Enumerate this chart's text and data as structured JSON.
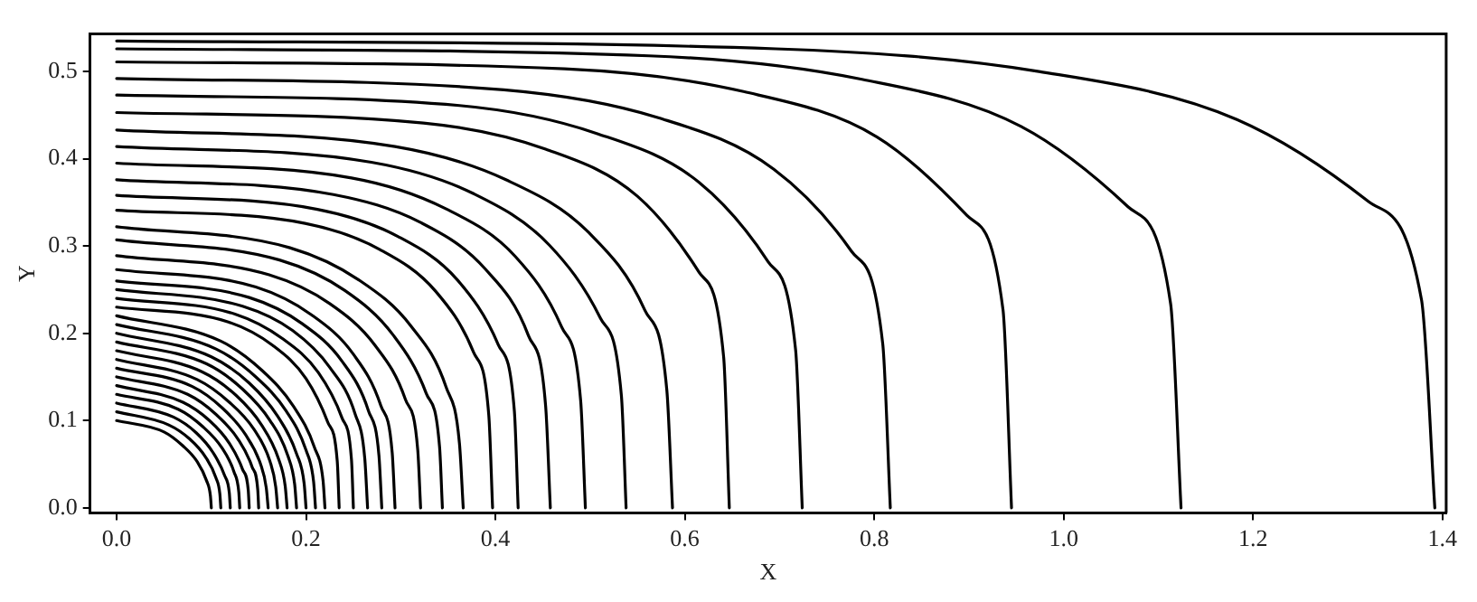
{
  "chart_data": {
    "type": "line",
    "xlabel": "X",
    "ylabel": "Y",
    "xlim": [
      -0.028,
      1.404
    ],
    "ylim": [
      -0.006,
      0.543
    ],
    "xticks": [
      {
        "value": 0,
        "label": "0.0"
      },
      {
        "value": 0.2,
        "label": "0.2"
      },
      {
        "value": 0.4,
        "label": "0.4"
      },
      {
        "value": 0.6,
        "label": "0.6"
      },
      {
        "value": 0.8,
        "label": "0.8"
      },
      {
        "value": 1,
        "label": "1.0"
      },
      {
        "value": 1.2,
        "label": "1.2"
      },
      {
        "value": 1.4,
        "label": "1.4"
      }
    ],
    "yticks": [
      {
        "value": 0,
        "label": "0.0"
      },
      {
        "value": 0.1,
        "label": "0.1"
      },
      {
        "value": 0.2,
        "label": "0.2"
      },
      {
        "value": 0.3,
        "label": "0.3"
      },
      {
        "value": 0.4,
        "label": "0.4"
      },
      {
        "value": 0.5,
        "label": "0.5"
      }
    ],
    "grid": false,
    "legend": false,
    "marker": "none",
    "line_style": "solid",
    "series": [
      {
        "color": "#000000",
        "x": [
          0,
          0.05,
          0.07,
          0.085,
          0.095,
          0.099,
          0.1
        ],
        "values": [
          0.1,
          0.087,
          0.071,
          0.053,
          0.031,
          0.014,
          0
        ]
      },
      {
        "color": "#000000",
        "x": [
          0,
          0.055,
          0.077,
          0.094,
          0.105,
          0.109,
          0.11
        ],
        "values": [
          0.11,
          0.095,
          0.079,
          0.058,
          0.034,
          0.016,
          0
        ]
      },
      {
        "color": "#000000",
        "x": [
          0,
          0.06,
          0.084,
          0.102,
          0.114,
          0.119,
          0.12
        ],
        "values": [
          0.12,
          0.104,
          0.086,
          0.063,
          0.037,
          0.017,
          0
        ]
      },
      {
        "color": "#000000",
        "x": [
          0,
          0.065,
          0.091,
          0.111,
          0.124,
          0.129,
          0.13
        ],
        "values": [
          0.13,
          0.113,
          0.093,
          0.069,
          0.041,
          0.018,
          0
        ]
      },
      {
        "color": "#000000",
        "x": [
          0,
          0.07,
          0.098,
          0.119,
          0.133,
          0.139,
          0.14
        ],
        "values": [
          0.14,
          0.121,
          0.1,
          0.074,
          0.044,
          0.02,
          0
        ]
      },
      {
        "color": "#000000",
        "x": [
          0,
          0.075,
          0.105,
          0.128,
          0.143,
          0.149,
          0.15
        ],
        "values": [
          0.15,
          0.13,
          0.107,
          0.079,
          0.047,
          0.021,
          0
        ]
      },
      {
        "color": "#000000",
        "x": [
          0,
          0.08,
          0.112,
          0.136,
          0.152,
          0.158,
          0.16
        ],
        "values": [
          0.16,
          0.139,
          0.114,
          0.084,
          0.05,
          0.023,
          0
        ]
      },
      {
        "color": "#000000",
        "x": [
          0,
          0.085,
          0.119,
          0.145,
          0.162,
          0.168,
          0.17
        ],
        "values": [
          0.17,
          0.147,
          0.121,
          0.09,
          0.053,
          0.024,
          0
        ]
      },
      {
        "color": "#000000",
        "x": [
          0,
          0.09,
          0.126,
          0.153,
          0.171,
          0.178,
          0.18
        ],
        "values": [
          0.18,
          0.156,
          0.129,
          0.095,
          0.056,
          0.025,
          0
        ]
      },
      {
        "color": "#000000",
        "x": [
          0,
          0.095,
          0.133,
          0.162,
          0.181,
          0.188,
          0.19
        ],
        "values": [
          0.19,
          0.165,
          0.136,
          0.1,
          0.059,
          0.027,
          0
        ]
      },
      {
        "color": "#000000",
        "x": [
          0,
          0.1,
          0.14,
          0.17,
          0.19,
          0.198,
          0.2
        ],
        "values": [
          0.2,
          0.173,
          0.143,
          0.105,
          0.062,
          0.028,
          0
        ]
      },
      {
        "color": "#000000",
        "x": [
          0,
          0.105,
          0.147,
          0.179,
          0.2,
          0.208,
          0.21
        ],
        "values": [
          0.21,
          0.182,
          0.15,
          0.111,
          0.066,
          0.03,
          0
        ]
      },
      {
        "color": "#000000",
        "x": [
          0,
          0.11,
          0.154,
          0.187,
          0.209,
          0.218,
          0.22
        ],
        "values": [
          0.22,
          0.191,
          0.157,
          0.116,
          0.069,
          0.031,
          0
        ]
      },
      {
        "color": "#000000",
        "x": [
          0,
          0.118,
          0.165,
          0.2,
          0.223,
          0.233,
          0.235
        ],
        "values": [
          0.23,
          0.213,
          0.186,
          0.148,
          0.098,
          0.053,
          0
        ]
      },
      {
        "color": "#000000",
        "x": [
          0,
          0.125,
          0.175,
          0.213,
          0.238,
          0.248,
          0.25
        ],
        "values": [
          0.24,
          0.222,
          0.194,
          0.155,
          0.103,
          0.055,
          0
        ]
      },
      {
        "color": "#000000",
        "x": [
          0,
          0.133,
          0.186,
          0.225,
          0.252,
          0.262,
          0.265
        ],
        "values": [
          0.25,
          0.231,
          0.203,
          0.161,
          0.107,
          0.057,
          0
        ]
      },
      {
        "color": "#000000",
        "x": [
          0,
          0.14,
          0.196,
          0.238,
          0.266,
          0.277,
          0.28
        ],
        "values": [
          0.26,
          0.241,
          0.211,
          0.168,
          0.111,
          0.06,
          0
        ]
      },
      {
        "color": "#000000",
        "x": [
          0,
          0.147,
          0.206,
          0.25,
          0.279,
          0.291,
          0.294
        ],
        "values": [
          0.273,
          0.253,
          0.221,
          0.176,
          0.117,
          0.063,
          0
        ]
      },
      {
        "color": "#000000",
        "x": [
          0,
          0.161,
          0.225,
          0.273,
          0.305,
          0.318,
          0.321
        ],
        "values": [
          0.289,
          0.267,
          0.234,
          0.186,
          0.124,
          0.066,
          0
        ]
      },
      {
        "color": "#000000",
        "x": [
          0,
          0.172,
          0.241,
          0.292,
          0.327,
          0.341,
          0.344
        ],
        "values": [
          0.307,
          0.284,
          0.249,
          0.198,
          0.131,
          0.07,
          0
        ]
      },
      {
        "color": "#000000",
        "x": [
          0,
          0.183,
          0.256,
          0.311,
          0.348,
          0.362,
          0.366
        ],
        "values": [
          0.322,
          0.298,
          0.261,
          0.208,
          0.138,
          0.074,
          0
        ]
      },
      {
        "color": "#000000",
        "x": [
          0,
          0.199,
          0.278,
          0.337,
          0.377,
          0.393,
          0.397
        ],
        "values": [
          0.341,
          0.326,
          0.296,
          0.248,
          0.178,
          0.106,
          0
        ]
      },
      {
        "color": "#000000",
        "x": [
          0,
          0.212,
          0.297,
          0.36,
          0.403,
          0.42,
          0.424
        ],
        "values": [
          0.358,
          0.342,
          0.311,
          0.261,
          0.187,
          0.111,
          0
        ]
      },
      {
        "color": "#000000",
        "x": [
          0,
          0.229,
          0.321,
          0.389,
          0.435,
          0.453,
          0.458
        ],
        "values": [
          0.376,
          0.359,
          0.327,
          0.274,
          0.197,
          0.117,
          0
        ]
      },
      {
        "color": "#000000",
        "x": [
          0,
          0.248,
          0.347,
          0.421,
          0.47,
          0.49,
          0.495
        ],
        "values": [
          0.395,
          0.378,
          0.343,
          0.288,
          0.207,
          0.123,
          0
        ]
      },
      {
        "color": "#000000",
        "x": [
          0,
          0.269,
          0.377,
          0.457,
          0.511,
          0.533,
          0.538
        ],
        "values": [
          0.414,
          0.396,
          0.36,
          0.301,
          0.217,
          0.129,
          0
        ]
      },
      {
        "color": "#000000",
        "x": [
          0,
          0.294,
          0.411,
          0.499,
          0.558,
          0.581,
          0.587
        ],
        "values": [
          0.433,
          0.414,
          0.376,
          0.315,
          0.226,
          0.135,
          0
        ]
      },
      {
        "color": "#000000",
        "x": [
          0,
          0.324,
          0.453,
          0.55,
          0.615,
          0.641,
          0.647
        ],
        "values": [
          0.453,
          0.441,
          0.411,
          0.357,
          0.27,
          0.173,
          0
        ]
      },
      {
        "color": "#000000",
        "x": [
          0,
          0.362,
          0.507,
          0.615,
          0.688,
          0.717,
          0.724
        ],
        "values": [
          0.473,
          0.461,
          0.429,
          0.373,
          0.282,
          0.181,
          0
        ]
      },
      {
        "color": "#000000",
        "x": [
          0,
          0.409,
          0.572,
          0.694,
          0.776,
          0.809,
          0.817
        ],
        "values": [
          0.492,
          0.479,
          0.447,
          0.388,
          0.294,
          0.188,
          0
        ]
      },
      {
        "color": "#000000",
        "x": [
          0,
          0.473,
          0.662,
          0.803,
          0.898,
          0.936,
          0.945
        ],
        "values": [
          0.511,
          0.503,
          0.477,
          0.425,
          0.335,
          0.227,
          0
        ]
      },
      {
        "color": "#000000",
        "x": [
          0,
          0.562,
          0.787,
          0.955,
          1.068,
          1.113,
          1.124
        ],
        "values": [
          0.526,
          0.518,
          0.491,
          0.437,
          0.345,
          0.234,
          0
        ]
      },
      {
        "color": "#000000",
        "x": [
          0,
          0.696,
          0.974,
          1.183,
          1.322,
          1.378,
          1.392
        ],
        "values": [
          0.535,
          0.526,
          0.5,
          0.445,
          0.351,
          0.238,
          0
        ]
      }
    ]
  }
}
